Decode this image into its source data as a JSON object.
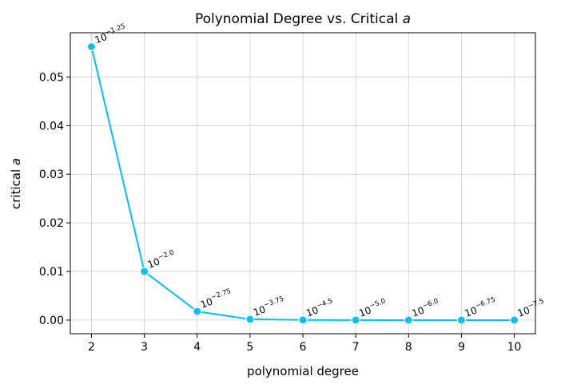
{
  "chart_data": {
    "type": "line",
    "title_main": "Polynomial Degree vs. Critical ",
    "title_var": "a",
    "xlabel": "polynomial degree",
    "ylabel_main": "critical ",
    "ylabel_var": "a",
    "x": [
      2,
      3,
      4,
      5,
      6,
      7,
      8,
      9,
      10
    ],
    "y": [
      0.05623,
      0.01,
      0.001778,
      0.000178,
      3.16e-05,
      1e-05,
      1e-06,
      1.78e-07,
      3.16e-08
    ],
    "annotation_base": "10",
    "annotation_exponents": [
      "−1.25",
      "−2.0",
      "−2.75",
      "−3.75",
      "−4.5",
      "−5.0",
      "−6.0",
      "−6.75",
      "−7.5"
    ],
    "xlim": [
      1.6,
      10.4
    ],
    "ylim": [
      -0.0028,
      0.0591
    ],
    "xticks": [
      2,
      3,
      4,
      5,
      6,
      7,
      8,
      9,
      10
    ],
    "yticks": [
      0.0,
      0.01,
      0.02,
      0.03,
      0.04,
      0.05
    ],
    "ytick_labels": [
      "0.00",
      "0.01",
      "0.02",
      "0.03",
      "0.04",
      "0.05"
    ],
    "grid": true,
    "line_color": "#00bfff",
    "marker_edge_color": "#ffffff"
  }
}
